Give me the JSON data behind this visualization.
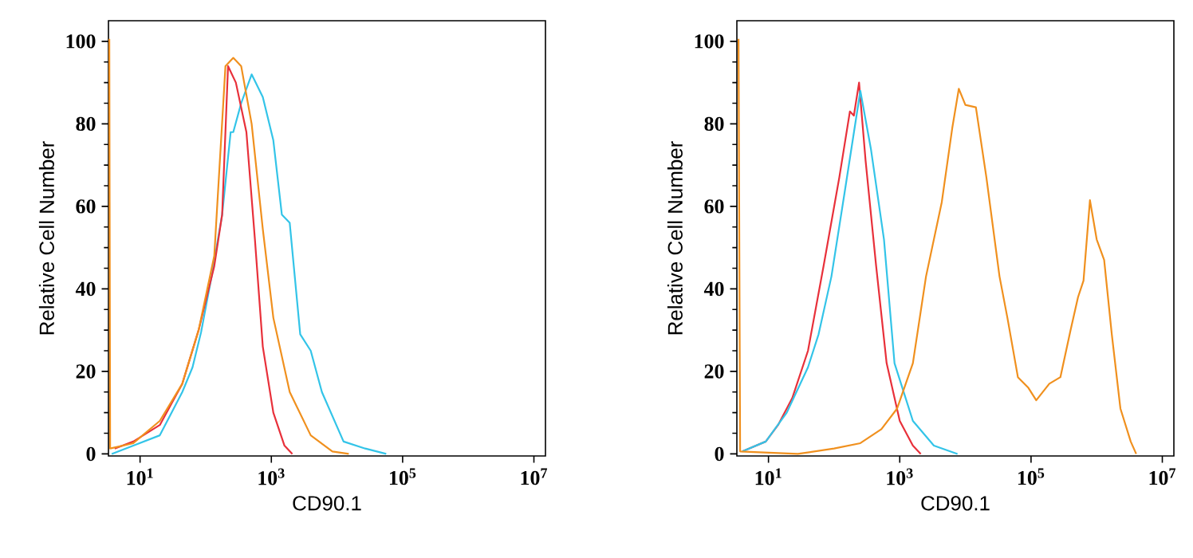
{
  "chart_data": [
    {
      "type": "line",
      "xlabel": "CD90.1",
      "ylabel": "Relative Cell Number",
      "log": "x",
      "xlim": [
        3.3,
        15000000
      ],
      "ylim": [
        -0.5,
        105
      ],
      "xticks": [
        {
          "value": 10,
          "label": "10$^{1}$"
        },
        {
          "value": 1000,
          "label": "10$^{3}$"
        },
        {
          "value": 100000,
          "label": "10$^{5}$"
        },
        {
          "value": 10000000,
          "label": "10$^{7}$"
        }
      ],
      "yticks": [
        0,
        20,
        40,
        60,
        80,
        100
      ],
      "series": [
        {
          "color": "#33c4e8",
          "x": [
            3.7,
            7.9,
            20,
            44,
            63,
            85,
            123,
            178,
            240,
            263,
            347,
            501,
            741,
            1072,
            1445,
            1905,
            2754,
            3981,
            5888,
            12589,
            26915,
            56234
          ],
          "values": [
            0,
            2,
            4.5,
            15,
            21,
            29.5,
            43,
            58,
            78,
            78,
            85,
            92,
            86.5,
            76,
            58,
            56,
            29,
            25,
            15,
            3,
            1.3,
            0
          ]
        },
        {
          "color": "#e8303a",
          "x": [
            4.1,
            7.9,
            20,
            44,
            78,
            135,
            178,
            219,
            288,
            417,
            562,
            741,
            1072,
            1585,
            2089
          ],
          "values": [
            1.3,
            3,
            7,
            17,
            30,
            45.5,
            58,
            94,
            90,
            78,
            52,
            26,
            10,
            2,
            0
          ]
        },
        {
          "color": "#f0901e",
          "x": [
            3.4,
            3.5,
            7.9,
            20,
            44,
            78,
            135,
            200,
            263,
            347,
            501,
            741,
            1072,
            1905,
            3981,
            8511,
            15136
          ],
          "values": [
            100.6,
            1.3,
            2.6,
            8,
            17,
            30,
            48,
            94,
            96,
            94,
            80,
            54.5,
            33,
            15,
            4.5,
            0.6,
            0
          ]
        }
      ]
    },
    {
      "type": "line",
      "xlabel": "CD90.1",
      "ylabel": "Relative Cell Number",
      "log": "x",
      "xlim": [
        3.3,
        15000000
      ],
      "ylim": [
        -0.5,
        105
      ],
      "xticks": [
        {
          "value": 10,
          "label": "10$^{1}$"
        },
        {
          "value": 1000,
          "label": "10$^{3}$"
        },
        {
          "value": 100000,
          "label": "10$^{5}$"
        },
        {
          "value": 10000000,
          "label": "10$^{7}$"
        }
      ],
      "yticks": [
        0,
        20,
        40,
        60,
        80,
        100
      ],
      "series": [
        {
          "color": "#e8303a",
          "x": [
            4.0,
            9.1,
            14,
            23,
            40,
            69,
            120,
            174,
            200,
            240,
            302,
            437,
            631,
            1000,
            1585,
            2089
          ],
          "values": [
            0.6,
            3,
            7,
            13.5,
            25,
            45.5,
            67,
            83,
            82,
            90,
            71,
            45.5,
            22,
            8,
            2,
            0
          ]
        },
        {
          "color": "#33c4e8",
          "x": [
            4.0,
            9.1,
            19,
            40,
            58,
            91,
            145,
            251,
            363,
            575,
            832,
            1585,
            3311,
            7586
          ],
          "values": [
            0.6,
            3,
            10,
            21,
            29,
            43,
            63.5,
            88,
            74,
            52,
            22,
            8,
            2,
            0
          ]
        },
        {
          "color": "#f0901e",
          "x": [
            3.5,
            3.7,
            28,
            100,
            251,
            525,
            912,
            1585,
            2512,
            4365,
            6310,
            7943,
            10000,
            14454,
            20893,
            33113,
            43652,
            63096,
            91201,
            120000,
            190000,
            280000,
            400000,
            520000,
            630000,
            790000,
            1000000,
            1300000,
            1700000,
            2300000,
            3300000,
            4000000
          ],
          "values": [
            100.6,
            0.6,
            0,
            1.3,
            2.6,
            6,
            11,
            22,
            43,
            61,
            79,
            88.5,
            84.6,
            84,
            67,
            43,
            33,
            18.6,
            16,
            13,
            17,
            18.6,
            30,
            38,
            42,
            61.5,
            52,
            47,
            29,
            11,
            3,
            0
          ]
        }
      ]
    }
  ]
}
